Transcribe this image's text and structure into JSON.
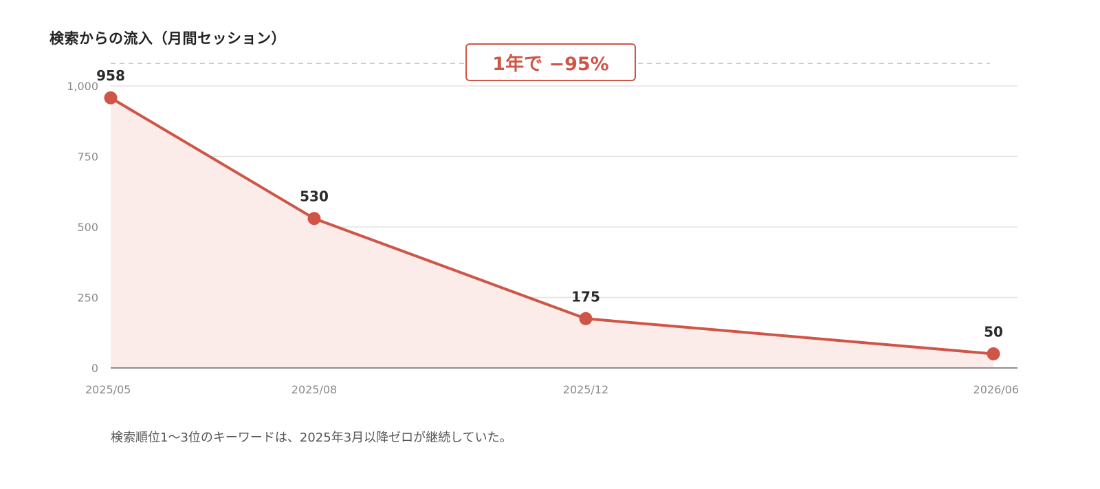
{
  "colors": {
    "line": "#cf5546",
    "area": "#fbecea",
    "grid": "#e3e3e3",
    "axis": "#8f8f8f",
    "reference_line": "#f0b7ae"
  },
  "chart_data": {
    "type": "area",
    "title": "検索からの流入（月間セッション）",
    "xlabel": "",
    "ylabel": "",
    "x": [
      "2025/05",
      "2025/08",
      "2025/12",
      "2026/06"
    ],
    "series": [
      {
        "values": [
          958,
          530,
          175,
          50
        ]
      }
    ],
    "data_labels": [
      "958",
      "530",
      "175",
      "50"
    ],
    "ylim": [
      0,
      1000
    ],
    "yticks": [
      0,
      250,
      500,
      750,
      1000
    ],
    "ytick_labels": [
      "0",
      "250",
      "500",
      "750",
      "1,000"
    ],
    "grid": true,
    "legend": "none",
    "annotation": {
      "text": "1年で −95%",
      "reference_value": 1080,
      "line_style": "dashed"
    },
    "footnote": "検索順位1〜3位のキーワードは、2025年3月以降ゼロが継続していた。"
  }
}
